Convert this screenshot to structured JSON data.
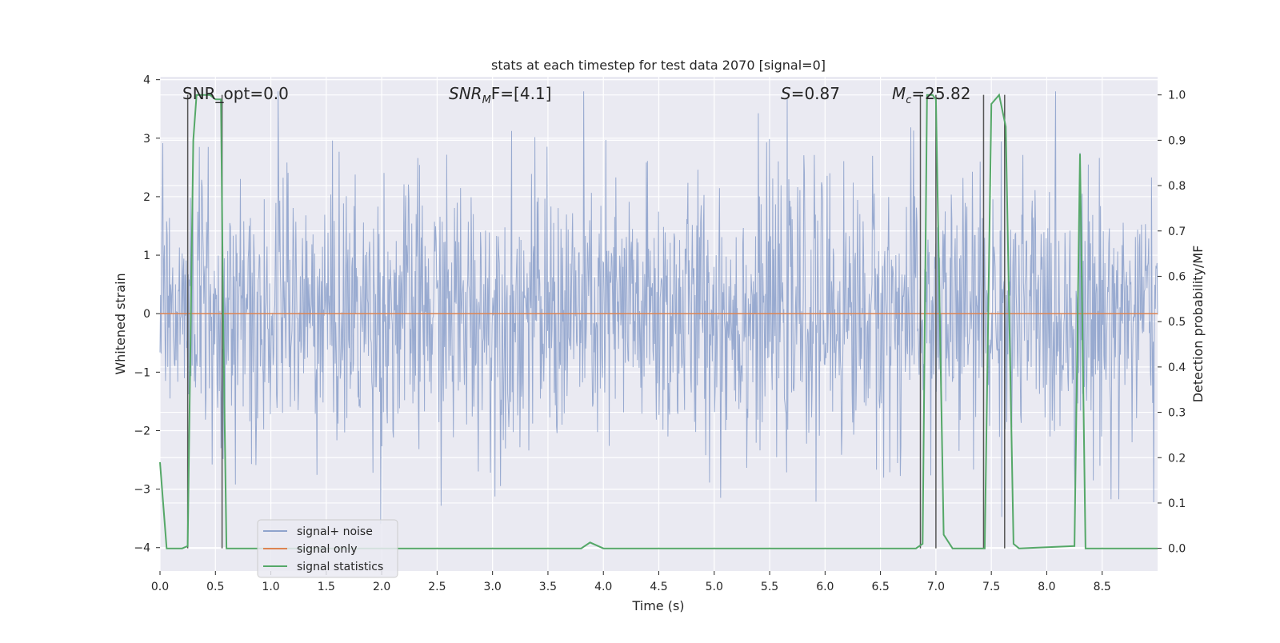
{
  "chart_data": {
    "type": "line",
    "title": "stats at each timestep for test data 2070 [signal=0]",
    "xlabel": "Time (s)",
    "ylabel": "Whitened strain",
    "y2label": "Detection probability/MF",
    "xlim": [
      0.0,
      9.0
    ],
    "ylim": [
      -4.4,
      4.05
    ],
    "y2lim": [
      -0.05,
      1.04
    ],
    "x_ticks": [
      "0.0",
      "0.5",
      "1.0",
      "1.5",
      "2.0",
      "2.5",
      "3.0",
      "3.5",
      "4.0",
      "4.5",
      "5.0",
      "5.5",
      "6.0",
      "6.5",
      "7.0",
      "7.5",
      "8.0",
      "8.5"
    ],
    "y_ticks": [
      "4",
      "3",
      "2",
      "1",
      "0",
      "−1",
      "−2",
      "−3",
      "−4"
    ],
    "y2_ticks": [
      "1.0",
      "0.9",
      "0.8",
      "0.7",
      "0.6",
      "0.5",
      "0.4",
      "0.3",
      "0.2",
      "0.1",
      "0.0"
    ],
    "annotations": {
      "snr_opt": "SNR_opt=0.0",
      "snr_mf_symbol": "SNR",
      "snr_mf_sub": "M",
      "snr_mf_rest": "F=[4.1]",
      "s_symbol": "S",
      "s_value": "=0.87",
      "mc_symbol": "M",
      "mc_sub": "c",
      "mc_value": "=25.82"
    },
    "legend": {
      "position": "lower-left",
      "entries": [
        "signal+ noise",
        "signal only",
        "signal statistics"
      ]
    },
    "colors": {
      "noise": "#8fa3cc",
      "signal": "#dd8452",
      "stats": "#55a868",
      "bg": "#eaeaf2",
      "grid": "#ffffff",
      "marker": "#555555"
    },
    "series": [
      {
        "name": "signal+ noise",
        "description": "whitened strain noise, amplitude mostly within ±2, spikes up to ~±3.8",
        "sample_count": 1800,
        "x_range": [
          0.0,
          9.0
        ]
      },
      {
        "name": "signal only",
        "x": [
          0.0,
          9.0
        ],
        "y": [
          0.0,
          0.0
        ]
      },
      {
        "name": "signal statistics",
        "axis": "right",
        "x": [
          0.0,
          0.06,
          0.2,
          0.25,
          0.3,
          0.33,
          0.38,
          0.45,
          0.5,
          0.55,
          0.57,
          0.6,
          0.63,
          0.7,
          3.8,
          3.88,
          4.0,
          6.82,
          6.88,
          6.92,
          6.97,
          7.0,
          7.07,
          7.15,
          7.4,
          7.44,
          7.5,
          7.57,
          7.63,
          7.7,
          7.75,
          8.25,
          8.3,
          8.35,
          9.0
        ],
        "y": [
          0.19,
          0.0,
          0.0,
          0.005,
          0.9,
          1.0,
          1.0,
          1.0,
          0.99,
          0.99,
          0.5,
          0.0,
          0.0,
          0.0,
          0.0,
          0.013,
          0.0,
          0.0,
          0.01,
          1.0,
          1.0,
          0.99,
          0.03,
          0.0,
          0.0,
          0.0,
          0.98,
          1.0,
          0.93,
          0.01,
          0.0,
          0.005,
          0.87,
          0.0,
          0.0
        ]
      },
      {
        "name": "detection markers",
        "axis": "right",
        "x": [
          0.25,
          0.56,
          6.86,
          7.0,
          7.43,
          7.62
        ],
        "y_from": [
          1.0,
          1.0,
          1.0,
          1.0,
          1.0,
          1.0
        ],
        "y_to": [
          0.0,
          0.0,
          0.0,
          0.0,
          0.0,
          0.0
        ]
      }
    ]
  }
}
